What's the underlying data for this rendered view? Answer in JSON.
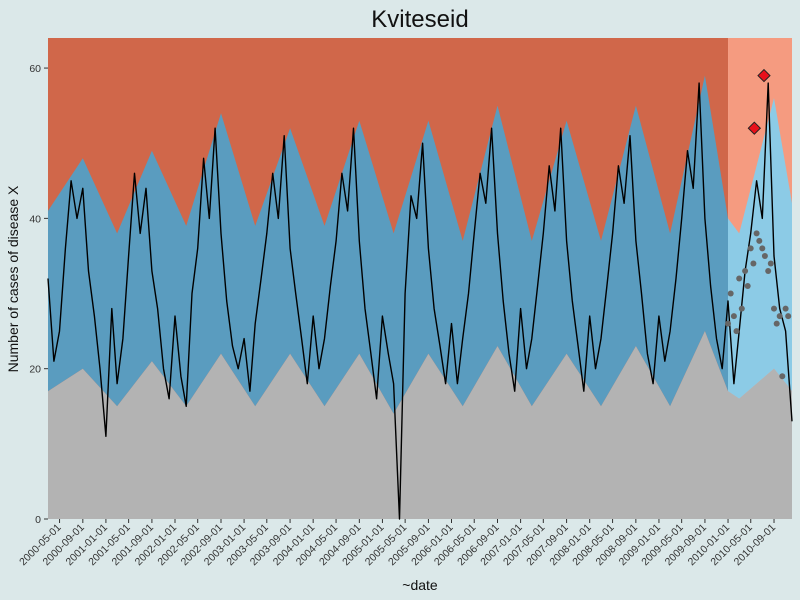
{
  "chart_data": {
    "type": "area",
    "title": "Kviteseid",
    "xlabel": "~date",
    "ylabel": "Number of cases of disease X",
    "ylim": [
      0,
      64
    ],
    "xlim": [
      "2000-03-01",
      "2010-12-05"
    ],
    "y_ticks": [
      0,
      20,
      40,
      60
    ],
    "x_ticks": [
      "2000-05-01",
      "2000-09-01",
      "2001-01-01",
      "2001-05-01",
      "2001-09-01",
      "2002-01-01",
      "2002-05-01",
      "2002-09-01",
      "2003-01-01",
      "2003-05-01",
      "2003-09-01",
      "2004-01-01",
      "2004-05-01",
      "2004-09-01",
      "2005-01-01",
      "2005-05-01",
      "2005-09-01",
      "2006-01-01",
      "2006-05-01",
      "2006-09-01",
      "2007-01-01",
      "2007-05-01",
      "2007-09-01",
      "2008-01-01",
      "2008-05-01",
      "2008-09-01",
      "2009-01-01",
      "2009-05-01",
      "2009-09-01",
      "2010-01-01",
      "2010-05-01",
      "2010-09-01"
    ],
    "baseline_end": "2010-01-01",
    "grid": false,
    "bands": {
      "normal_upper": [
        [
          "2000-03-01",
          41
        ],
        [
          "2000-09-01",
          48
        ],
        [
          "2001-03-01",
          38
        ],
        [
          "2001-09-01",
          49
        ],
        [
          "2002-03-01",
          39
        ],
        [
          "2002-09-01",
          54
        ],
        [
          "2003-03-01",
          39
        ],
        [
          "2003-09-01",
          52
        ],
        [
          "2004-03-01",
          39
        ],
        [
          "2004-09-01",
          53
        ],
        [
          "2005-03-01",
          38
        ],
        [
          "2005-09-01",
          53
        ],
        [
          "2006-03-01",
          37
        ],
        [
          "2006-09-01",
          55
        ],
        [
          "2007-03-01",
          37
        ],
        [
          "2007-09-01",
          53
        ],
        [
          "2008-03-01",
          37
        ],
        [
          "2008-09-01",
          55
        ],
        [
          "2009-03-01",
          38
        ],
        [
          "2009-09-01",
          59
        ],
        [
          "2010-01-01",
          40
        ],
        [
          "2010-03-01",
          38
        ],
        [
          "2010-09-01",
          56
        ],
        [
          "2010-12-05",
          42
        ]
      ],
      "normal_lower": [
        [
          "2000-03-01",
          17
        ],
        [
          "2000-09-01",
          20
        ],
        [
          "2001-03-01",
          15
        ],
        [
          "2001-09-01",
          21
        ],
        [
          "2002-03-01",
          15
        ],
        [
          "2002-09-01",
          22
        ],
        [
          "2003-03-01",
          15
        ],
        [
          "2003-09-01",
          22
        ],
        [
          "2004-03-01",
          15
        ],
        [
          "2004-09-01",
          22
        ],
        [
          "2005-03-01",
          14
        ],
        [
          "2005-09-01",
          22
        ],
        [
          "2006-03-01",
          15
        ],
        [
          "2006-09-01",
          23
        ],
        [
          "2007-03-01",
          15
        ],
        [
          "2007-09-01",
          22
        ],
        [
          "2008-03-01",
          15
        ],
        [
          "2008-09-01",
          23
        ],
        [
          "2009-03-01",
          15
        ],
        [
          "2009-09-01",
          25
        ],
        [
          "2010-01-01",
          17
        ],
        [
          "2010-03-01",
          16
        ],
        [
          "2010-09-01",
          20
        ],
        [
          "2010-12-05",
          17
        ]
      ]
    },
    "series": [
      {
        "values": [
          [
            "2000-03-01",
            32
          ],
          [
            "2000-04-01",
            21
          ],
          [
            "2000-05-01",
            25
          ],
          [
            "2000-06-01",
            36
          ],
          [
            "2000-07-01",
            45
          ],
          [
            "2000-08-01",
            40
          ],
          [
            "2000-09-01",
            44
          ],
          [
            "2000-10-01",
            33
          ],
          [
            "2000-11-01",
            27
          ],
          [
            "2000-12-01",
            20
          ],
          [
            "2001-01-01",
            11
          ],
          [
            "2001-02-01",
            28
          ],
          [
            "2001-03-01",
            18
          ],
          [
            "2001-04-01",
            24
          ],
          [
            "2001-05-01",
            35
          ],
          [
            "2001-06-01",
            46
          ],
          [
            "2001-07-01",
            38
          ],
          [
            "2001-08-01",
            44
          ],
          [
            "2001-09-01",
            33
          ],
          [
            "2001-10-01",
            28
          ],
          [
            "2001-11-01",
            20
          ],
          [
            "2001-12-01",
            16
          ],
          [
            "2002-01-01",
            27
          ],
          [
            "2002-02-01",
            19
          ],
          [
            "2002-03-01",
            15
          ],
          [
            "2002-04-01",
            30
          ],
          [
            "2002-05-01",
            36
          ],
          [
            "2002-06-01",
            48
          ],
          [
            "2002-07-01",
            40
          ],
          [
            "2002-08-01",
            52
          ],
          [
            "2002-09-01",
            38
          ],
          [
            "2002-10-01",
            29
          ],
          [
            "2002-11-01",
            23
          ],
          [
            "2002-12-01",
            20
          ],
          [
            "2003-01-01",
            24
          ],
          [
            "2003-02-01",
            17
          ],
          [
            "2003-03-01",
            26
          ],
          [
            "2003-04-01",
            32
          ],
          [
            "2003-05-01",
            38
          ],
          [
            "2003-06-01",
            46
          ],
          [
            "2003-07-01",
            40
          ],
          [
            "2003-08-01",
            51
          ],
          [
            "2003-09-01",
            36
          ],
          [
            "2003-10-01",
            30
          ],
          [
            "2003-11-01",
            24
          ],
          [
            "2003-12-01",
            18
          ],
          [
            "2004-01-01",
            27
          ],
          [
            "2004-02-01",
            20
          ],
          [
            "2004-03-01",
            24
          ],
          [
            "2004-04-01",
            31
          ],
          [
            "2004-05-01",
            37
          ],
          [
            "2004-06-01",
            46
          ],
          [
            "2004-07-01",
            41
          ],
          [
            "2004-08-01",
            52
          ],
          [
            "2004-09-01",
            37
          ],
          [
            "2004-10-01",
            28
          ],
          [
            "2004-11-01",
            22
          ],
          [
            "2004-12-01",
            16
          ],
          [
            "2005-01-01",
            27
          ],
          [
            "2005-02-01",
            22
          ],
          [
            "2005-03-01",
            18
          ],
          [
            "2005-04-01",
            0
          ],
          [
            "2005-05-01",
            30
          ],
          [
            "2005-06-01",
            43
          ],
          [
            "2005-07-01",
            40
          ],
          [
            "2005-08-01",
            50
          ],
          [
            "2005-09-01",
            36
          ],
          [
            "2005-10-01",
            28
          ],
          [
            "2005-11-01",
            23
          ],
          [
            "2005-12-01",
            18
          ],
          [
            "2006-01-01",
            26
          ],
          [
            "2006-02-01",
            18
          ],
          [
            "2006-03-01",
            24
          ],
          [
            "2006-04-01",
            30
          ],
          [
            "2006-05-01",
            38
          ],
          [
            "2006-06-01",
            46
          ],
          [
            "2006-07-01",
            42
          ],
          [
            "2006-08-01",
            52
          ],
          [
            "2006-09-01",
            38
          ],
          [
            "2006-10-01",
            29
          ],
          [
            "2006-11-01",
            22
          ],
          [
            "2006-12-01",
            17
          ],
          [
            "2007-01-01",
            28
          ],
          [
            "2007-02-01",
            20
          ],
          [
            "2007-03-01",
            24
          ],
          [
            "2007-04-01",
            31
          ],
          [
            "2007-05-01",
            38
          ],
          [
            "2007-06-01",
            47
          ],
          [
            "2007-07-01",
            41
          ],
          [
            "2007-08-01",
            52
          ],
          [
            "2007-09-01",
            37
          ],
          [
            "2007-10-01",
            29
          ],
          [
            "2007-11-01",
            23
          ],
          [
            "2007-12-01",
            17
          ],
          [
            "2008-01-01",
            27
          ],
          [
            "2008-02-01",
            20
          ],
          [
            "2008-03-01",
            24
          ],
          [
            "2008-04-01",
            31
          ],
          [
            "2008-05-01",
            38
          ],
          [
            "2008-06-01",
            47
          ],
          [
            "2008-07-01",
            42
          ],
          [
            "2008-08-01",
            51
          ],
          [
            "2008-09-01",
            37
          ],
          [
            "2008-10-01",
            30
          ],
          [
            "2008-11-01",
            22
          ],
          [
            "2008-12-01",
            18
          ],
          [
            "2009-01-01",
            27
          ],
          [
            "2009-02-01",
            21
          ],
          [
            "2009-03-01",
            25
          ],
          [
            "2009-04-01",
            32
          ],
          [
            "2009-05-01",
            40
          ],
          [
            "2009-06-01",
            49
          ],
          [
            "2009-07-01",
            44
          ],
          [
            "2009-08-01",
            58
          ],
          [
            "2009-09-01",
            40
          ],
          [
            "2009-10-01",
            31
          ],
          [
            "2009-11-01",
            24
          ],
          [
            "2009-12-01",
            20
          ],
          [
            "2010-01-01",
            29
          ],
          [
            "2010-02-01",
            18
          ],
          [
            "2010-03-01",
            25
          ],
          [
            "2010-04-01",
            33
          ],
          [
            "2010-05-01",
            38
          ],
          [
            "2010-06-01",
            45
          ],
          [
            "2010-07-01",
            40
          ],
          [
            "2010-08-01",
            58
          ],
          [
            "2010-09-01",
            35
          ],
          [
            "2010-10-01",
            28
          ],
          [
            "2010-11-01",
            25
          ],
          [
            "2010-12-05",
            13
          ]
        ]
      }
    ],
    "forecast_points": [
      [
        "2010-01-01",
        26
      ],
      [
        "2010-01-15",
        30
      ],
      [
        "2010-02-01",
        27
      ],
      [
        "2010-02-15",
        25
      ],
      [
        "2010-03-01",
        32
      ],
      [
        "2010-03-15",
        28
      ],
      [
        "2010-04-01",
        33
      ],
      [
        "2010-04-15",
        31
      ],
      [
        "2010-05-01",
        36
      ],
      [
        "2010-05-15",
        34
      ],
      [
        "2010-06-01",
        38
      ],
      [
        "2010-06-15",
        37
      ],
      [
        "2010-07-01",
        36
      ],
      [
        "2010-07-15",
        35
      ],
      [
        "2010-08-01",
        33
      ],
      [
        "2010-08-15",
        34
      ],
      [
        "2010-09-01",
        28
      ],
      [
        "2010-09-15",
        26
      ],
      [
        "2010-10-01",
        27
      ],
      [
        "2010-10-15",
        19
      ],
      [
        "2010-11-01",
        28
      ],
      [
        "2010-11-15",
        27
      ]
    ],
    "alert_points": [
      [
        "2010-05-20",
        52
      ],
      [
        "2010-07-10",
        59
      ]
    ],
    "colors": {
      "background": "#dbe8e9",
      "high_zone": "#d0674a",
      "normal_zone": "#5a9cbf",
      "low_zone": "#b3b3b3",
      "forecast_high_zone": "#f59b80",
      "forecast_normal_zone": "#8ccbe6",
      "line": "#000000",
      "forecast_point": "#666666",
      "alert_point": "#e8101a"
    }
  }
}
